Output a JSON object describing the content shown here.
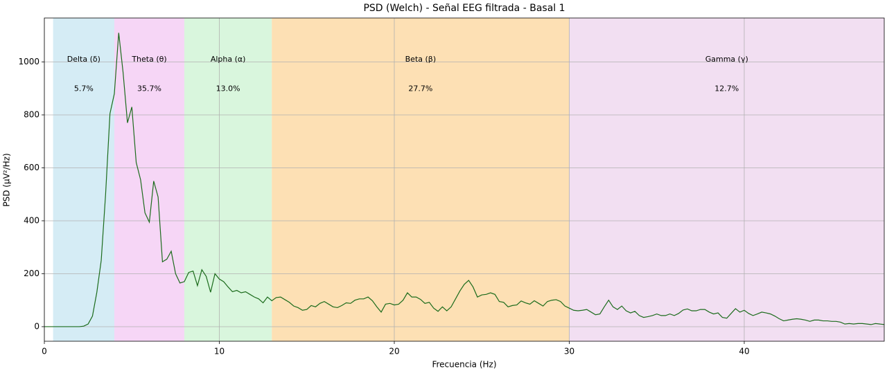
{
  "chart_data": {
    "type": "line",
    "title": "PSD (Welch) - Señal EEG filtrada - Basal 1",
    "x_label": "Frecuencia (Hz)",
    "y_label": "PSD (µV²/Hz)",
    "xlim": [
      0,
      48
    ],
    "ylim": [
      -55,
      1166
    ],
    "xticks": [
      0,
      10,
      20,
      30,
      40
    ],
    "yticks": [
      0,
      200,
      400,
      600,
      800,
      1000
    ],
    "grid": true,
    "bands": [
      {
        "name": "Delta (δ)",
        "range": [
          0.5,
          4
        ],
        "color": "#d5ecf5",
        "percent": "5.7%"
      },
      {
        "name": "Theta (θ)",
        "range": [
          4,
          8
        ],
        "color": "#f6d6f6",
        "percent": "35.7%"
      },
      {
        "name": "Alpha (α)",
        "range": [
          8,
          13
        ],
        "color": "#d9f6dd",
        "percent": "13.0%"
      },
      {
        "name": "Beta (β)",
        "range": [
          13,
          30
        ],
        "color": "#fde0b4",
        "percent": "27.7%"
      },
      {
        "name": "Gamma (γ)",
        "range": [
          30,
          48
        ],
        "color": "#f2dff2",
        "percent": "12.7%"
      }
    ],
    "series": [
      {
        "color": "#1b6b1b",
        "x": [
          0,
          0.25,
          0.5,
          0.75,
          1,
          1.25,
          1.5,
          1.75,
          2,
          2.25,
          2.5,
          2.75,
          3,
          3.25,
          3.5,
          3.75,
          4,
          4.25,
          4.5,
          4.75,
          5,
          5.25,
          5.5,
          5.75,
          6,
          6.25,
          6.5,
          6.75,
          7,
          7.25,
          7.5,
          7.75,
          8,
          8.25,
          8.5,
          8.75,
          9,
          9.25,
          9.5,
          9.75,
          10,
          10.25,
          10.5,
          10.75,
          11,
          11.25,
          11.5,
          11.75,
          12,
          12.25,
          12.5,
          12.75,
          13,
          13.25,
          13.5,
          13.75,
          14,
          14.25,
          14.5,
          14.75,
          15,
          15.25,
          15.5,
          15.75,
          16,
          16.25,
          16.5,
          16.75,
          17,
          17.25,
          17.5,
          17.75,
          18,
          18.25,
          18.5,
          18.75,
          19,
          19.25,
          19.5,
          19.75,
          20,
          20.25,
          20.5,
          20.75,
          21,
          21.25,
          21.5,
          21.75,
          22,
          22.25,
          22.5,
          22.75,
          23,
          23.25,
          23.5,
          23.75,
          24,
          24.25,
          24.5,
          24.75,
          25,
          25.25,
          25.5,
          25.75,
          26,
          26.25,
          26.5,
          26.75,
          27,
          27.25,
          27.5,
          27.75,
          28,
          28.25,
          28.5,
          28.75,
          29,
          29.25,
          29.5,
          29.75,
          30,
          30.25,
          30.5,
          30.75,
          31,
          31.25,
          31.5,
          31.75,
          32,
          32.25,
          32.5,
          32.75,
          33,
          33.25,
          33.5,
          33.75,
          34,
          34.25,
          34.5,
          34.75,
          35,
          35.25,
          35.5,
          35.75,
          36,
          36.25,
          36.5,
          36.75,
          37,
          37.25,
          37.5,
          37.75,
          38,
          38.25,
          38.5,
          38.75,
          39,
          39.25,
          39.5,
          39.75,
          40,
          40.25,
          40.5,
          40.75,
          41,
          41.25,
          41.5,
          41.75,
          42,
          42.25,
          42.5,
          42.75,
          43,
          43.25,
          43.5,
          43.75,
          44,
          44.25,
          44.5,
          44.75,
          45,
          45.25,
          45.5,
          45.75,
          46,
          46.25,
          46.5,
          46.75,
          47,
          47.25,
          47.5,
          47.75,
          48
        ],
        "values": [
          0,
          0,
          0,
          0,
          0,
          0,
          0,
          0,
          0,
          2,
          10,
          40,
          130,
          250,
          500,
          805,
          880,
          1110,
          960,
          770,
          830,
          620,
          555,
          430,
          395,
          550,
          490,
          245,
          255,
          285,
          200,
          165,
          170,
          205,
          210,
          155,
          215,
          190,
          130,
          200,
          180,
          170,
          150,
          132,
          137,
          128,
          132,
          122,
          112,
          105,
          90,
          112,
          98,
          110,
          112,
          102,
          92,
          78,
          72,
          62,
          65,
          80,
          75,
          88,
          95,
          85,
          75,
          72,
          80,
          90,
          88,
          100,
          105,
          105,
          112,
          98,
          75,
          55,
          85,
          88,
          82,
          85,
          100,
          128,
          112,
          112,
          103,
          88,
          92,
          70,
          58,
          75,
          60,
          75,
          105,
          135,
          160,
          175,
          150,
          112,
          120,
          122,
          128,
          122,
          95,
          92,
          75,
          80,
          82,
          97,
          90,
          85,
          98,
          88,
          78,
          95,
          100,
          102,
          95,
          78,
          70,
          62,
          60,
          62,
          65,
          55,
          45,
          48,
          75,
          100,
          75,
          65,
          78,
          60,
          52,
          58,
          42,
          35,
          38,
          42,
          48,
          42,
          42,
          48,
          42,
          50,
          63,
          67,
          60,
          60,
          65,
          65,
          55,
          48,
          52,
          35,
          32,
          50,
          68,
          55,
          62,
          50,
          42,
          48,
          55,
          52,
          48,
          40,
          30,
          22,
          25,
          28,
          30,
          28,
          25,
          20,
          25,
          25,
          22,
          22,
          20,
          20,
          17,
          10,
          12,
          10,
          12,
          12,
          10,
          8,
          12,
          10,
          8
        ]
      }
    ]
  }
}
